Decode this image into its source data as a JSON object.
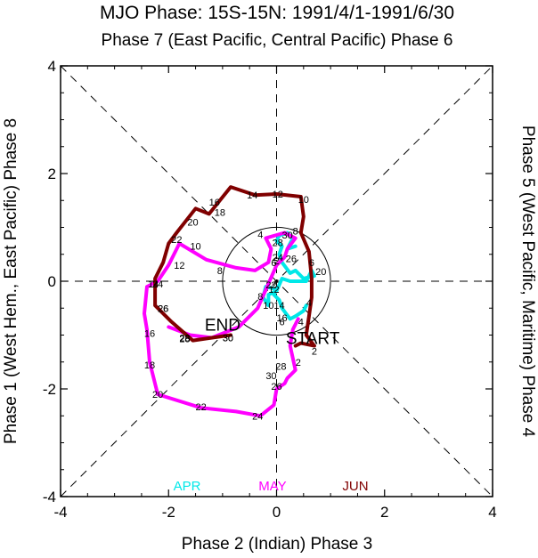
{
  "chart_data": {
    "type": "line",
    "title": "MJO Phase: 15S-15N: 1991/4/1-1991/6/30",
    "top_label": "Phase 7 (East Pacific, Central Pacific) Phase 6",
    "xlabel": "Phase 2 (Indian) Phase 3",
    "left_label": "Phase 1 (West Hem., East Pacific) Phase 8",
    "right_label": "Phase 5 (West Pacific, Maritime) Phase 4",
    "xlim": [
      -4,
      4
    ],
    "ylim": [
      -4,
      4
    ],
    "x_ticks": [
      -4,
      -2,
      0,
      2,
      4
    ],
    "y_ticks": [
      -4,
      -2,
      0,
      2,
      4
    ],
    "x_tick_labels": [
      "-4",
      "-2",
      "0",
      "2",
      "4"
    ],
    "y_tick_labels": [
      "-4",
      "-2",
      "0",
      "2",
      "4"
    ],
    "circle_radius": 1,
    "annotations": [
      {
        "text": "START",
        "x": 0.67,
        "y": -1.05
      },
      {
        "text": "END",
        "x": -1.0,
        "y": -0.8
      }
    ],
    "legend": [
      "APR",
      "MAY",
      "JUN"
    ],
    "series": [
      {
        "name": "APR",
        "color": "#00e8e8",
        "points": [
          [
            0.55,
            -0.45
          ],
          [
            0.5,
            -0.55
          ],
          [
            0.35,
            -0.65
          ],
          [
            0.25,
            -0.7
          ],
          [
            0.1,
            -0.5
          ],
          [
            0.05,
            -0.35
          ],
          [
            -0.05,
            -0.25
          ],
          [
            0,
            -0.15
          ],
          [
            -0.2,
            -0.1
          ],
          [
            -0.25,
            -0.3
          ],
          [
            -0.15,
            -0.45
          ],
          [
            -0.15,
            -0.25
          ],
          [
            0,
            -0.18
          ],
          [
            0.1,
            0.05
          ],
          [
            0.25,
            0.0
          ],
          [
            0.55,
            0.0
          ],
          [
            0.65,
            0.2
          ],
          [
            0.7,
            0.1
          ],
          [
            0.5,
            0.05
          ],
          [
            0.35,
            0.2
          ],
          [
            0.25,
            0.15
          ],
          [
            0.1,
            0.35
          ],
          [
            0.05,
            0.5
          ],
          [
            0.1,
            0.65
          ],
          [
            0.0,
            0.75
          ],
          [
            0.05,
            0.85
          ],
          [
            0.2,
            0.9
          ],
          [
            0.3,
            0.8
          ],
          [
            0.2,
            0.6
          ],
          [
            0.35,
            0.65
          ]
        ],
        "day_labels": [
          {
            "text": "22",
            "x": -0.1,
            "y": -0.07
          },
          {
            "text": "12",
            "x": -0.05,
            "y": -0.15
          },
          {
            "text": "8",
            "x": -0.3,
            "y": -0.28
          },
          {
            "text": "10",
            "x": -0.15,
            "y": -0.45
          },
          {
            "text": "14",
            "x": 0.05,
            "y": -0.45
          },
          {
            "text": "16",
            "x": 0.1,
            "y": -0.68
          },
          {
            "text": "6",
            "x": 0.1,
            "y": -0.75
          },
          {
            "text": "20",
            "x": 0.82,
            "y": 0.18
          },
          {
            "text": "24",
            "x": 0.02,
            "y": 0.45
          },
          {
            "text": "26",
            "x": 0.27,
            "y": 0.42
          },
          {
            "text": "28",
            "x": 0.02,
            "y": 0.72
          },
          {
            "text": "30",
            "x": 0.2,
            "y": 0.86
          },
          {
            "text": "4",
            "x": 0.45,
            "y": -0.75
          },
          {
            "text": "2",
            "x": 0.0,
            "y": 0.38
          }
        ]
      },
      {
        "name": "MAY",
        "color": "#ff00ff",
        "points": [
          [
            0.4,
            -0.7
          ],
          [
            0.3,
            -0.9
          ],
          [
            0.25,
            -1.2
          ],
          [
            0.35,
            -1.65
          ],
          [
            0.2,
            -1.8
          ],
          [
            0.15,
            -1.9
          ],
          [
            0.0,
            -2.0
          ],
          [
            -0.05,
            -2.3
          ],
          [
            -0.3,
            -2.5
          ],
          [
            -0.75,
            -2.42
          ],
          [
            -1.4,
            -2.35
          ],
          [
            -2.2,
            -2.1
          ],
          [
            -2.35,
            -1.5
          ],
          [
            -2.4,
            -0.9
          ],
          [
            -2.45,
            -0.6
          ],
          [
            -2.4,
            -0.1
          ],
          [
            -2.2,
            0.0
          ],
          [
            -2.0,
            0.3
          ],
          [
            -1.8,
            0.7
          ],
          [
            -1.3,
            0.4
          ],
          [
            -0.75,
            0.25
          ],
          [
            -0.4,
            0.2
          ],
          [
            -0.15,
            0.35
          ],
          [
            -0.1,
            0.6
          ],
          [
            -0.2,
            0.8
          ],
          [
            0.15,
            0.9
          ],
          [
            0.35,
            0.8
          ],
          [
            0.2,
            0.6
          ],
          [
            0.15,
            0.45
          ],
          [
            0.0,
            0.3
          ],
          [
            -0.35,
            -0.5
          ],
          [
            -0.7,
            -0.85
          ],
          [
            -1.2,
            -1.05
          ],
          [
            -1.6,
            -1.0
          ],
          [
            -2.0,
            -0.85
          ]
        ],
        "day_labels": [
          {
            "text": "28",
            "x": 0.08,
            "y": -1.58
          },
          {
            "text": "30",
            "x": -0.1,
            "y": -1.75
          },
          {
            "text": "26",
            "x": 0.0,
            "y": -1.95
          },
          {
            "text": "24",
            "x": -0.35,
            "y": -2.5
          },
          {
            "text": "22",
            "x": -1.4,
            "y": -2.33
          },
          {
            "text": "20",
            "x": -2.2,
            "y": -2.1
          },
          {
            "text": "18",
            "x": -2.35,
            "y": -1.55
          },
          {
            "text": "16",
            "x": -2.35,
            "y": -0.97
          },
          {
            "text": "14",
            "x": -2.28,
            "y": -0.05
          },
          {
            "text": "12",
            "x": -1.8,
            "y": 0.3
          },
          {
            "text": "10",
            "x": -1.5,
            "y": 0.65
          },
          {
            "text": "8",
            "x": -1.05,
            "y": 0.2
          },
          {
            "text": "6",
            "x": -0.05,
            "y": 0.35
          },
          {
            "text": "4",
            "x": -0.3,
            "y": 0.87
          },
          {
            "text": "2",
            "x": 0.4,
            "y": -1.5
          },
          {
            "text": "30",
            "x": -0.9,
            "y": -1.05
          },
          {
            "text": "28",
            "x": -1.7,
            "y": -1.05
          },
          {
            "text": "26",
            "x": -2.1,
            "y": -0.5
          }
        ]
      },
      {
        "name": "JUN",
        "color": "#800000",
        "points": [
          [
            -0.85,
            -1.0
          ],
          [
            -1.55,
            -1.1
          ],
          [
            -1.95,
            -0.75
          ],
          [
            -2.25,
            -0.45
          ],
          [
            -2.25,
            0.05
          ],
          [
            -2.1,
            0.35
          ],
          [
            -2.0,
            0.7
          ],
          [
            -1.85,
            0.9
          ],
          [
            -1.5,
            1.35
          ],
          [
            -1.25,
            1.25
          ],
          [
            -0.85,
            1.75
          ],
          [
            -0.4,
            1.6
          ],
          [
            0.0,
            1.62
          ],
          [
            0.45,
            1.57
          ],
          [
            0.5,
            1.2
          ],
          [
            0.45,
            0.9
          ],
          [
            0.6,
            0.55
          ],
          [
            0.65,
            0.05
          ],
          [
            0.65,
            -0.3
          ],
          [
            0.6,
            -0.65
          ],
          [
            0.55,
            -1.0
          ],
          [
            0.7,
            -1.2
          ],
          [
            0.45,
            -1.15
          ],
          [
            0.35,
            -1.2
          ]
        ],
        "day_labels": [
          {
            "text": "30",
            "x": -0.9,
            "y": -1.05
          },
          {
            "text": "28",
            "x": -1.7,
            "y": -1.07
          },
          {
            "text": "26",
            "x": -2.1,
            "y": -0.5
          },
          {
            "text": "24",
            "x": -2.2,
            "y": -0.05
          },
          {
            "text": "22",
            "x": -1.85,
            "y": 0.78
          },
          {
            "text": "20",
            "x": -1.55,
            "y": 1.1
          },
          {
            "text": "18",
            "x": -1.05,
            "y": 1.28
          },
          {
            "text": "16",
            "x": -1.15,
            "y": 1.47
          },
          {
            "text": "14",
            "x": -0.45,
            "y": 1.6
          },
          {
            "text": "12",
            "x": 0.02,
            "y": 1.62
          },
          {
            "text": "10",
            "x": 0.5,
            "y": 1.52
          },
          {
            "text": "8",
            "x": 0.35,
            "y": 0.93
          },
          {
            "text": "6",
            "x": 0.65,
            "y": 0.35
          },
          {
            "text": "4",
            "x": 0.6,
            "y": -0.4
          },
          {
            "text": "2",
            "x": 0.7,
            "y": -1.3
          }
        ]
      }
    ]
  }
}
